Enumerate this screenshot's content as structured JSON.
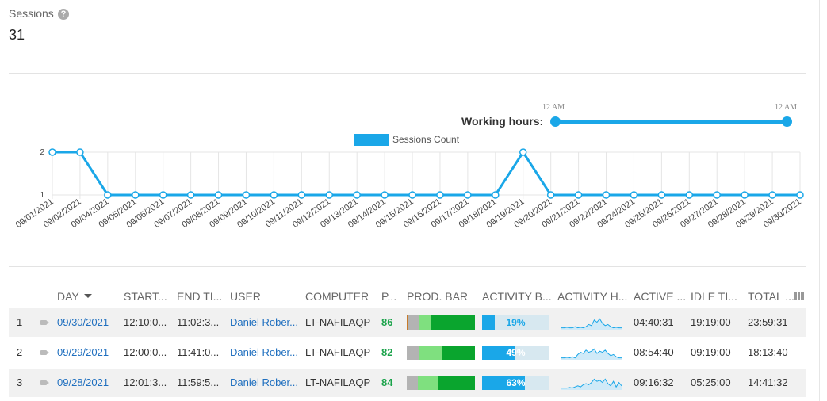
{
  "summary": {
    "title": "Sessions",
    "help": "?",
    "value": "31"
  },
  "working_hours": {
    "label": "Working hours:",
    "start": "12 AM",
    "end": "12 AM"
  },
  "chart_data": {
    "type": "line",
    "series": [
      {
        "name": "Sessions Count",
        "values": [
          2,
          2,
          1,
          1,
          1,
          1,
          1,
          1,
          1,
          1,
          1,
          1,
          1,
          1,
          1,
          1,
          1,
          2,
          1,
          1,
          1,
          1,
          1,
          1,
          1,
          1,
          1,
          1
        ]
      }
    ],
    "categories": [
      "09/01/2021",
      "09/02/2021",
      "09/04/2021",
      "09/05/2021",
      "09/06/2021",
      "09/07/2021",
      "09/08/2021",
      "09/09/2021",
      "09/10/2021",
      "09/11/2021",
      "09/12/2021",
      "09/13/2021",
      "09/14/2021",
      "09/15/2021",
      "09/16/2021",
      "09/17/2021",
      "09/18/2021",
      "09/19/2021",
      "09/20/2021",
      "09/21/2021",
      "09/22/2021",
      "09/24/2021",
      "09/25/2021",
      "09/26/2021",
      "09/27/2021",
      "09/28/2021",
      "09/29/2021",
      "09/30/2021"
    ],
    "y_ticks": [
      "1",
      "2"
    ],
    "ylim": [
      1,
      2
    ],
    "color": "#1aa7e8",
    "legend": "top-center",
    "grid": true
  },
  "table": {
    "columns": {
      "day": "DAY",
      "start": "START...",
      "end": "END TI...",
      "user": "USER",
      "computer": "COMPUTER",
      "prod": "P...",
      "prod_bar": "PROD. BAR",
      "activity_bar": "ACTIVITY B...",
      "activity_h": "ACTIVITY H...",
      "active": "ACTIVE ...",
      "idle": "IDLE TI...",
      "total": "TOTAL ..."
    },
    "rows": [
      {
        "num": "1",
        "day": "09/30/2021",
        "start": "12:10:0...",
        "end": "11:02:3...",
        "user": "Daniel Rober...",
        "computer": "LT-NAFILAQP",
        "prod": "86",
        "prod_bar": [
          0.02,
          0.15,
          0.18,
          0.65
        ],
        "activity_percent": 19,
        "activity_label": "19%",
        "spark": [
          0.1,
          0.1,
          0.15,
          0.1,
          0.1,
          0.2,
          0.1,
          0.15,
          0.1,
          0.2,
          0.4,
          0.3,
          0.8,
          0.6,
          0.9,
          0.5,
          0.3,
          0.4,
          0.2,
          0.1,
          0.15,
          0.1,
          0.1
        ],
        "active": "04:40:31",
        "idle": "19:19:00",
        "total": "23:59:31"
      },
      {
        "num": "2",
        "day": "09/29/2021",
        "start": "12:00:0...",
        "end": "11:41:0...",
        "user": "Daniel Rober...",
        "computer": "LT-NAFILAQP",
        "prod": "82",
        "prod_bar": [
          0,
          0.18,
          0.33,
          0.49
        ],
        "activity_percent": 49,
        "activity_label": "49%",
        "spark": [
          0.1,
          0.1,
          0.15,
          0.1,
          0.2,
          0.1,
          0.4,
          0.6,
          0.5,
          0.8,
          0.6,
          0.7,
          0.9,
          0.5,
          0.7,
          0.6,
          0.8,
          0.5,
          0.3,
          0.4,
          0.2,
          0.1,
          0.1
        ],
        "active": "08:54:40",
        "idle": "09:19:00",
        "total": "18:13:40"
      },
      {
        "num": "3",
        "day": "09/28/2021",
        "start": "12:01:3...",
        "end": "11:59:5...",
        "user": "Daniel Rober...",
        "computer": "LT-NAFILAQP",
        "prod": "84",
        "prod_bar": [
          0,
          0.16,
          0.31,
          0.53
        ],
        "activity_percent": 63,
        "activity_label": "63%",
        "spark": [
          0.1,
          0.1,
          0.1,
          0.15,
          0.1,
          0.2,
          0.3,
          0.2,
          0.4,
          0.5,
          0.4,
          0.6,
          0.9,
          0.7,
          0.8,
          0.6,
          0.9,
          0.5,
          0.3,
          0.7,
          0.2,
          0.6,
          0.3
        ],
        "active": "09:16:32",
        "idle": "05:25:00",
        "total": "14:41:32"
      }
    ]
  },
  "colors": {
    "accent": "#1aa7e8",
    "link": "#1f6fbf",
    "productive": "#1aa34a",
    "prod_segments": [
      "#c87a2a",
      "#b3b3b3",
      "#7fe07f",
      "#0aa52e"
    ]
  }
}
